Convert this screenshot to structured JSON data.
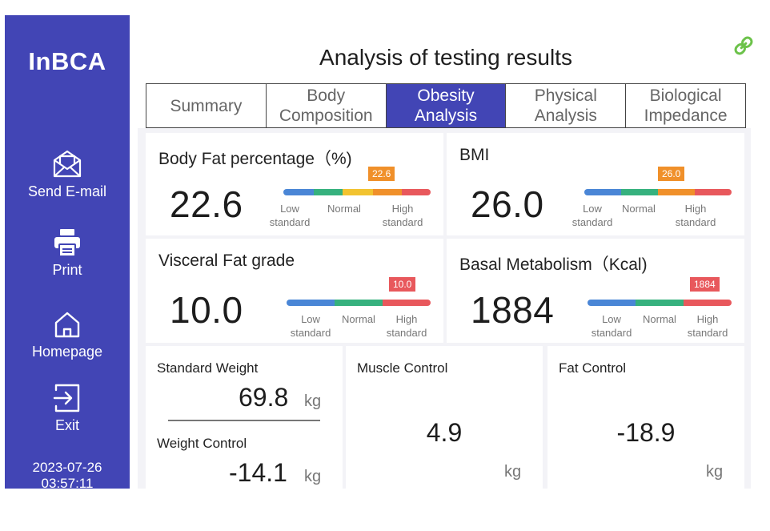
{
  "sidebar": {
    "logo": "InBCA",
    "items": [
      {
        "label": "Send E-mail",
        "icon": "envelope-icon"
      },
      {
        "label": "Print",
        "icon": "printer-icon"
      },
      {
        "label": "Homepage",
        "icon": "home-icon"
      },
      {
        "label": "Exit",
        "icon": "exit-icon"
      }
    ],
    "date": "2023-07-26",
    "time": "03:57:11"
  },
  "header": {
    "title": "Analysis of testing results",
    "link_icon": "link-icon",
    "link_color": "#6cc24a"
  },
  "tabs": [
    {
      "line1": "Summary",
      "line2": ""
    },
    {
      "line1": "Body",
      "line2": "Composition"
    },
    {
      "line1": "Obesity",
      "line2": "Analysis"
    },
    {
      "line1": "Physical",
      "line2": "Analysis"
    },
    {
      "line1": "Biological",
      "line2": "Impedance"
    }
  ],
  "active_tab": "Obesity Analysis",
  "scale_labels": {
    "low": [
      "Low",
      "standard"
    ],
    "normal": "Normal",
    "high": [
      "High",
      "standard"
    ]
  },
  "metrics": {
    "body_fat": {
      "title": "Body Fat percentage（%)",
      "value": "22.6",
      "marker": "22.6"
    },
    "bmi": {
      "title": "BMI",
      "value": "26.0",
      "marker": "26.0"
    },
    "visceral_fat": {
      "title": "Visceral Fat grade",
      "value": "10.0",
      "marker": "10.0"
    },
    "basal_metabolism": {
      "title": "Basal Metabolism（Kcal)",
      "value": "1884",
      "marker": "1884"
    }
  },
  "control": {
    "standard_weight": {
      "label": "Standard Weight",
      "value": "69.8",
      "unit": "kg"
    },
    "weight_control": {
      "label": "Weight Control",
      "value": "-14.1",
      "unit": "kg"
    },
    "muscle_control": {
      "label": "Muscle Control",
      "value": "4.9",
      "unit": "kg"
    },
    "fat_control": {
      "label": "Fat Control",
      "value": "-18.9",
      "unit": "kg"
    }
  },
  "colors": {
    "sidebar": "#4245b5",
    "low": "#4a86d6",
    "normal": "#36b17e",
    "warning": "#f2c330",
    "high": "#f0902a",
    "very_high": "#e8585c"
  }
}
